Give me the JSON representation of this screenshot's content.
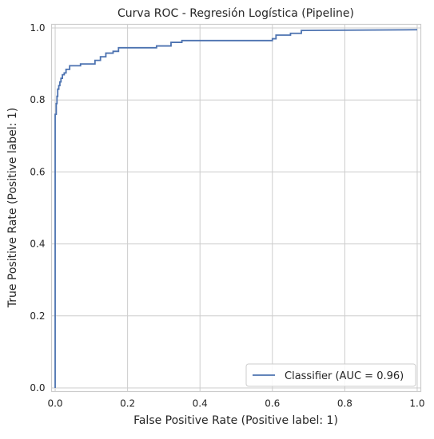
{
  "chart_data": {
    "type": "line",
    "title": "Curva ROC - Regresión Logística (Pipeline)",
    "xlabel": "False Positive Rate (Positive label: 1)",
    "ylabel": "True Positive Rate (Positive label: 1)",
    "xlim": [
      -0.01,
      1.01
    ],
    "ylim": [
      -0.01,
      1.01
    ],
    "xticks": [
      0.0,
      0.2,
      0.4,
      0.6,
      0.8,
      1.0
    ],
    "yticks": [
      0.0,
      0.2,
      0.4,
      0.6,
      0.8,
      1.0
    ],
    "xtick_labels": [
      "0.0",
      "0.2",
      "0.4",
      "0.6",
      "0.8",
      "1.0"
    ],
    "ytick_labels": [
      "0.0",
      "0.2",
      "0.4",
      "0.6",
      "0.8",
      "1.0"
    ],
    "grid": true,
    "legend_position": "lower-right",
    "series": [
      {
        "name": "Classifier (AUC = 0.96)",
        "color": "#4c72b0",
        "x": [
          0.0,
          0.0,
          0.003,
          0.003,
          0.005,
          0.005,
          0.007,
          0.007,
          0.01,
          0.01,
          0.013,
          0.013,
          0.016,
          0.016,
          0.02,
          0.02,
          0.025,
          0.025,
          0.03,
          0.03,
          0.04,
          0.04,
          0.07,
          0.07,
          0.11,
          0.11,
          0.125,
          0.125,
          0.14,
          0.14,
          0.16,
          0.16,
          0.175,
          0.175,
          0.28,
          0.28,
          0.32,
          0.32,
          0.35,
          0.35,
          0.6,
          0.6,
          0.61,
          0.61,
          0.65,
          0.65,
          0.68,
          0.68,
          1.0
        ],
        "y": [
          0.0,
          0.76,
          0.76,
          0.79,
          0.79,
          0.81,
          0.81,
          0.83,
          0.83,
          0.84,
          0.84,
          0.85,
          0.85,
          0.86,
          0.86,
          0.87,
          0.87,
          0.875,
          0.875,
          0.885,
          0.885,
          0.895,
          0.895,
          0.9,
          0.9,
          0.91,
          0.91,
          0.92,
          0.92,
          0.93,
          0.93,
          0.935,
          0.935,
          0.945,
          0.945,
          0.95,
          0.95,
          0.96,
          0.96,
          0.965,
          0.965,
          0.97,
          0.97,
          0.98,
          0.98,
          0.985,
          0.985,
          0.993,
          0.995
        ]
      }
    ]
  }
}
